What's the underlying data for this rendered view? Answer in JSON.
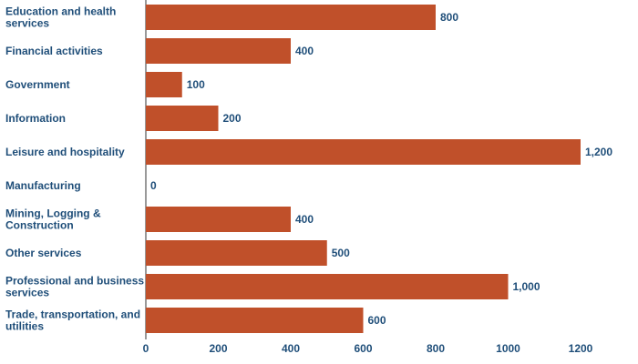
{
  "chart_data": {
    "type": "bar",
    "orientation": "horizontal",
    "title": "",
    "xlabel": "",
    "ylabel": "",
    "categories": [
      "Education and health services",
      "Financial activities",
      "Government",
      "Information",
      "Leisure and hospitality",
      "Manufacturing",
      "Mining, Logging & Construction",
      "Other services",
      "Professional and business services",
      "Trade, transportation, and utilities"
    ],
    "category_lines": [
      [
        "Education and health",
        "services"
      ],
      [
        "Financial activities"
      ],
      [
        "Government"
      ],
      [
        "Information"
      ],
      [
        "Leisure and hospitality"
      ],
      [
        "Manufacturing"
      ],
      [
        "Mining, Logging &",
        "Construction"
      ],
      [
        "Other services"
      ],
      [
        "Professional and business",
        "services"
      ],
      [
        "Trade, transportation, and",
        "utilities"
      ]
    ],
    "values": [
      800,
      400,
      100,
      200,
      1200,
      0,
      400,
      500,
      1000,
      600
    ],
    "value_labels": [
      "800",
      "400",
      "100",
      "200",
      "1,200",
      "0",
      "400",
      "500",
      "1,000",
      "600"
    ],
    "xlim": [
      0,
      1200
    ],
    "xticks": [
      0,
      200,
      400,
      600,
      800,
      1000,
      1200
    ],
    "xtick_labels": [
      "0",
      "200",
      "400",
      "600",
      "800",
      "1000",
      "1200"
    ],
    "grid": false,
    "legend": "none",
    "colors": {
      "bar": "#c0502a",
      "text": "#1f4e79",
      "axis": "#333333"
    }
  }
}
